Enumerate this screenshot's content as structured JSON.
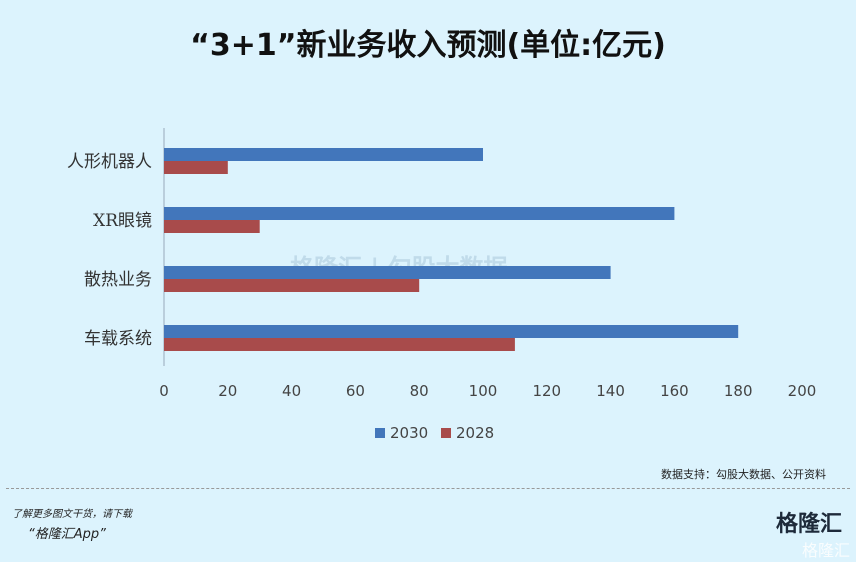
{
  "title": "“3+1”新业务收入预测(单位:亿元)",
  "chart_data": {
    "type": "bar",
    "orientation": "horizontal",
    "title": "“3+1”新业务收入预测(单位:亿元)",
    "categories": [
      "人形机器人",
      "XR眼镜",
      "散热业务",
      "车载系统"
    ],
    "series": [
      {
        "name": "2030",
        "values": [
          100,
          160,
          140,
          180
        ],
        "color": "#4276bb"
      },
      {
        "name": "2028",
        "values": [
          20,
          30,
          80,
          110
        ],
        "color": "#a84b4b"
      }
    ],
    "xlim": [
      0,
      200
    ],
    "xticks": [
      "0",
      "20",
      "40",
      "60",
      "80",
      "100",
      "120",
      "140",
      "160",
      "180",
      "200"
    ],
    "grid": false,
    "legend": "bottom"
  },
  "source": "数据支持：勾股大数据、公开资料",
  "watermark": "格隆汇 | 勾股大数据",
  "footer": {
    "promo_line1": "了解更多图文干货，请下载",
    "promo_line2": "“格隆汇App”",
    "logo": "格隆汇",
    "corner_watermark": "格隆汇"
  }
}
